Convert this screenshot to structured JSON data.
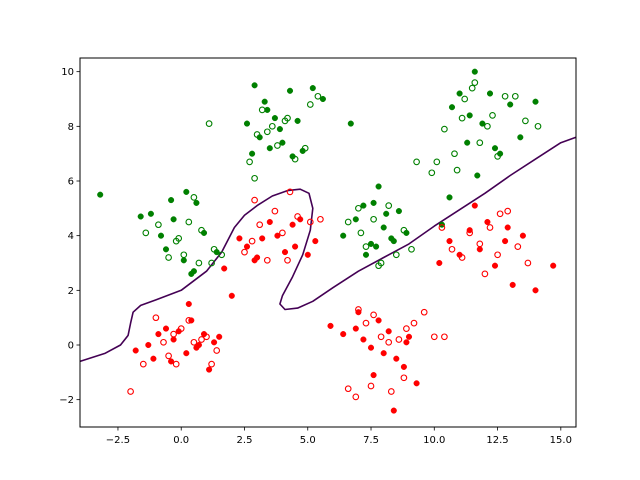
{
  "chart_data": {
    "type": "scatter",
    "title": "",
    "xlabel": "",
    "ylabel": "",
    "xlim": [
      -4.0,
      15.6
    ],
    "ylim": [
      -3.0,
      10.5
    ],
    "xticks": [
      -2.5,
      0.0,
      2.5,
      5.0,
      7.5,
      10.0,
      12.5,
      15.0
    ],
    "xtick_labels": [
      "−2.5",
      "0.0",
      "2.5",
      "5.0",
      "7.5",
      "10.0",
      "12.5",
      "15.0"
    ],
    "yticks": [
      -2,
      0,
      2,
      4,
      6,
      8,
      10
    ],
    "ytick_labels": [
      "−2",
      "0",
      "2",
      "4",
      "6",
      "8",
      "10"
    ],
    "grid": false,
    "colors": {
      "green": "#008000",
      "red": "#ff0000",
      "boundary": "#440154"
    },
    "series": [
      {
        "color": "green",
        "marker": "filled",
        "x": [
          -3.2,
          -1.6,
          -1.2,
          -0.6,
          -0.4,
          -0.3,
          0.1,
          0.4,
          0.5,
          0.9,
          1.4,
          -0.8,
          0.2,
          0.6,
          2.6,
          2.9,
          3.1,
          3.3,
          3.5,
          3.7,
          4.0,
          4.3,
          4.6,
          4.8,
          5.2,
          5.6,
          2.8,
          3.4,
          3.9,
          4.4,
          6.7,
          6.4,
          6.9,
          7.2,
          7.5,
          7.8,
          8.0,
          8.3,
          8.6,
          8.9,
          7.3,
          7.7,
          8.1,
          7.6,
          8.4,
          10.3,
          10.7,
          11.0,
          11.3,
          11.6,
          11.9,
          12.2,
          12.6,
          13.0,
          13.4,
          14.0,
          11.7,
          12.4,
          10.6,
          11.4
        ],
        "y": [
          5.5,
          4.7,
          4.8,
          3.5,
          5.3,
          4.6,
          3.1,
          2.6,
          2.7,
          4.1,
          3.4,
          4.0,
          5.6,
          5.2,
          8.1,
          9.5,
          7.6,
          8.9,
          7.2,
          8.3,
          7.4,
          9.3,
          8.2,
          7.1,
          9.4,
          9.0,
          7.0,
          8.6,
          7.9,
          6.9,
          8.1,
          4.0,
          4.6,
          5.1,
          3.7,
          5.8,
          4.3,
          3.9,
          4.9,
          4.1,
          3.3,
          3.6,
          4.8,
          5.2,
          3.8,
          4.4,
          8.7,
          9.2,
          7.4,
          10.0,
          8.1,
          9.2,
          7.0,
          8.8,
          7.6,
          8.9,
          6.2,
          7.2,
          5.4,
          8.4
        ]
      },
      {
        "color": "green",
        "marker": "hollow",
        "x": [
          -1.4,
          -0.9,
          -0.5,
          -0.2,
          0.1,
          0.3,
          0.7,
          0.8,
          1.1,
          1.3,
          1.6,
          -0.1,
          0.5,
          1.2,
          2.7,
          3.0,
          3.2,
          3.6,
          3.8,
          4.2,
          4.5,
          5.1,
          5.4,
          2.9,
          3.4,
          4.1,
          4.9,
          6.6,
          7.0,
          7.3,
          7.6,
          7.9,
          8.2,
          8.5,
          8.8,
          9.1,
          9.3,
          7.1,
          7.8,
          10.1,
          10.4,
          10.8,
          11.1,
          11.5,
          11.8,
          12.1,
          12.5,
          12.8,
          13.2,
          13.6,
          14.1,
          10.9,
          11.2,
          12.3,
          9.9,
          11.6
        ],
        "y": [
          4.1,
          4.4,
          3.2,
          3.8,
          3.3,
          4.5,
          3.0,
          4.2,
          8.1,
          3.5,
          3.3,
          3.9,
          5.4,
          3.0,
          6.7,
          7.7,
          8.6,
          8.0,
          7.3,
          8.3,
          6.8,
          8.8,
          9.1,
          6.1,
          7.8,
          8.2,
          7.2,
          4.5,
          5.0,
          3.6,
          4.6,
          3.0,
          5.1,
          3.3,
          4.2,
          3.5,
          6.7,
          4.1,
          2.9,
          6.7,
          7.9,
          7.0,
          8.3,
          9.4,
          7.4,
          8.0,
          6.9,
          9.1,
          9.1,
          8.2,
          8.0,
          6.4,
          9.0,
          8.4,
          6.3,
          9.6
        ]
      },
      {
        "color": "red",
        "marker": "filled",
        "x": [
          -1.8,
          -1.3,
          -1.1,
          -0.9,
          -0.6,
          -0.3,
          -0.1,
          0.2,
          0.4,
          0.6,
          0.9,
          1.1,
          1.3,
          1.5,
          -0.4,
          0.7,
          0.3,
          1.7,
          2.0,
          2.3,
          2.6,
          2.9,
          3.2,
          3.5,
          3.8,
          4.1,
          4.4,
          4.7,
          5.0,
          5.3,
          3.0,
          4.5,
          5.9,
          6.4,
          6.9,
          7.2,
          7.5,
          7.8,
          8.0,
          8.2,
          8.5,
          8.8,
          9.0,
          9.3,
          7.6,
          8.4,
          7.0,
          8.9,
          10.2,
          10.6,
          11.0,
          11.4,
          11.8,
          12.1,
          12.4,
          12.8,
          13.1,
          13.5,
          14.0,
          14.7,
          11.6,
          12.9
        ],
        "y": [
          -0.2,
          0.0,
          -0.5,
          0.4,
          0.6,
          0.2,
          0.5,
          -0.3,
          0.9,
          -0.1,
          0.4,
          -0.9,
          0.1,
          0.3,
          -0.6,
          0.0,
          1.5,
          2.8,
          1.8,
          3.9,
          3.6,
          3.1,
          3.9,
          4.5,
          4.0,
          3.4,
          4.4,
          4.6,
          3.3,
          3.8,
          3.2,
          3.6,
          0.7,
          0.4,
          0.6,
          0.2,
          -0.1,
          0.9,
          -0.3,
          0.5,
          -0.5,
          -0.8,
          0.3,
          -1.4,
          -1.1,
          -2.4,
          1.2,
          0.1,
          3.0,
          3.8,
          3.3,
          4.2,
          3.5,
          4.5,
          2.9,
          3.8,
          2.2,
          4.0,
          2.0,
          2.9,
          5.1,
          4.3
        ]
      },
      {
        "color": "red",
        "marker": "hollow",
        "x": [
          -2.0,
          -1.5,
          -1.0,
          -0.7,
          -0.5,
          -0.2,
          0.0,
          0.3,
          0.5,
          0.8,
          1.0,
          1.2,
          1.4,
          -0.3,
          2.5,
          2.8,
          3.1,
          3.4,
          3.7,
          4.0,
          4.3,
          4.6,
          5.1,
          5.5,
          2.9,
          4.2,
          6.6,
          6.9,
          7.3,
          7.6,
          7.9,
          8.2,
          8.6,
          8.9,
          9.2,
          9.6,
          10.0,
          10.4,
          7.0,
          7.5,
          8.8,
          8.3,
          10.3,
          10.7,
          11.1,
          11.4,
          11.8,
          12.2,
          12.5,
          12.9,
          13.3,
          13.7,
          12.6,
          12.0
        ],
        "y": [
          -1.7,
          -0.7,
          1.0,
          0.1,
          -0.4,
          -0.7,
          0.6,
          0.9,
          0.1,
          0.2,
          0.3,
          -0.7,
          -0.2,
          0.4,
          3.4,
          3.8,
          4.4,
          3.1,
          4.9,
          4.1,
          5.6,
          4.7,
          4.5,
          4.6,
          5.3,
          3.1,
          -1.6,
          -1.9,
          0.8,
          1.1,
          0.3,
          0.1,
          0.2,
          0.6,
          0.8,
          1.2,
          0.3,
          0.3,
          1.3,
          -1.5,
          -1.2,
          -1.7,
          4.3,
          3.5,
          3.2,
          4.1,
          3.7,
          4.3,
          3.3,
          4.9,
          3.6,
          3.0,
          4.8,
          2.6
        ]
      }
    ],
    "boundary": {
      "x": [
        -4.0,
        -3.0,
        -2.4,
        -2.1,
        -2.0,
        -1.9,
        -1.6,
        -1.0,
        0.0,
        1.0,
        1.6,
        2.1,
        2.5,
        3.0,
        3.6,
        4.2,
        4.7,
        5.05,
        5.2,
        5.1,
        4.8,
        4.4,
        4.0,
        3.9,
        4.1,
        4.6,
        5.2,
        6.0,
        7.0,
        8.0,
        9.0,
        10.0,
        11.0,
        12.0,
        13.0,
        14.0,
        15.0,
        15.6
      ],
      "y": [
        -0.6,
        -0.3,
        0.0,
        0.35,
        0.8,
        1.2,
        1.45,
        1.65,
        2.0,
        2.7,
        3.4,
        4.3,
        4.75,
        5.1,
        5.45,
        5.65,
        5.7,
        5.55,
        5.0,
        4.2,
        3.3,
        2.5,
        1.8,
        1.5,
        1.3,
        1.35,
        1.6,
        2.1,
        2.7,
        3.2,
        3.7,
        4.35,
        4.95,
        5.55,
        6.2,
        6.8,
        7.4,
        7.6
      ]
    }
  }
}
